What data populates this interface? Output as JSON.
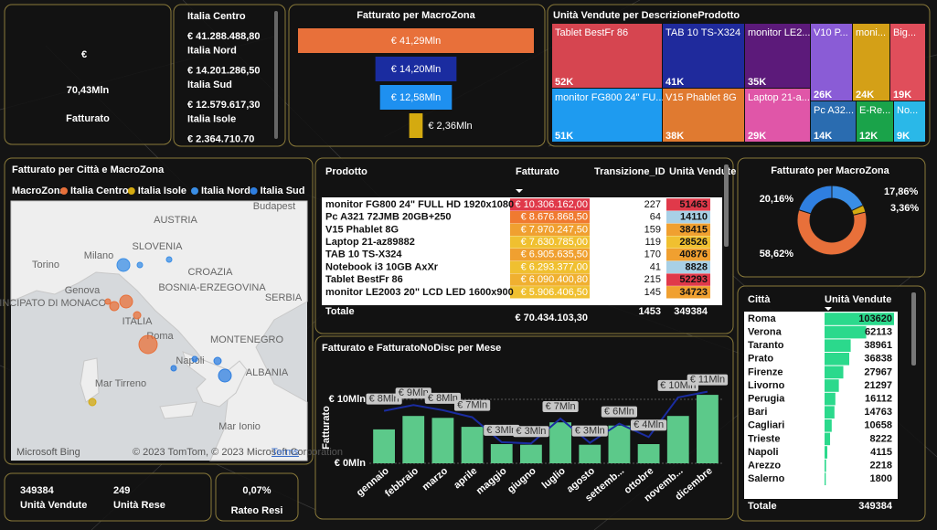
{
  "kpi": {
    "currency": "€",
    "value": "70,43Mln",
    "label": "Fatturato"
  },
  "zones": [
    {
      "name": "Italia Centro",
      "value": "€ 41.288.488,80"
    },
    {
      "name": "Italia Nord",
      "value": "€ 14.201.286,50"
    },
    {
      "name": "Italia Sud",
      "value": "€ 12.579.617,30"
    },
    {
      "name": "Italia Isole",
      "value": "€ 2.364.710.70"
    }
  ],
  "funnel": {
    "type": "bar",
    "title": "Fatturato per MacroZona",
    "values": [
      41.29,
      14.2,
      12.58,
      2.36
    ],
    "value_labels": [
      "€ 41,29Mln",
      "€ 14,20Mln",
      "€ 12,58Mln",
      "€ 2,36Mln"
    ],
    "colors": [
      "#e8703a",
      "#1a2ca0",
      "#1e90f0",
      "#d4aa10"
    ]
  },
  "treemap": {
    "type": "treemap",
    "title": "Unità Vendute per DescrizioneProdotto",
    "labels": [
      "Tablet BestFr 86",
      "TAB 10 TS-X324",
      "monitor LE2...",
      "V10 P...",
      "moni...",
      "Big...",
      "monitor FG800 24\" FU...",
      "V15 Phablet 8G",
      "Laptop 21-a...",
      "Pc A32...",
      "E-Re...",
      "No..."
    ],
    "values": [
      52,
      41,
      35,
      26,
      24,
      19,
      51,
      38,
      29,
      14,
      12,
      9
    ],
    "value_labels": [
      "52K",
      "41K",
      "35K",
      "26K",
      "24K",
      "19K",
      "51K",
      "38K",
      "29K",
      "14K",
      "12K",
      "9K"
    ],
    "colors": [
      "#d64550",
      "#1f2a9c",
      "#5c1a7a",
      "#8a5cd6",
      "#d4a017",
      "#e04e5b",
      "#1e9bf0",
      "#e07a30",
      "#e056a8",
      "#2a6cb0",
      "#1aa34a",
      "#2ab8e8"
    ]
  },
  "map": {
    "title": "Fatturato per Città e MacroZona",
    "legend_title": "MacroZona",
    "legend": [
      {
        "name": "Italia Centro",
        "color": "#e8703a"
      },
      {
        "name": "Italia Isole",
        "color": "#d4aa10"
      },
      {
        "name": "Italia Nord",
        "color": "#3a8ee6"
      },
      {
        "name": "Italia Sud",
        "color": "#2f7fe0"
      }
    ],
    "places": [
      "AUSTRIA",
      "Budapest",
      "SLOVENIA",
      "CROAZIA",
      "BOSNIA-ERZEGOVINA",
      "SERBIA",
      "MONTENEGRO",
      "ALBANIA",
      "Milano",
      "Torino",
      "Genova",
      "PRINCIPATO DI MONACO",
      "ITALIA",
      "Roma",
      "Napoli",
      "Mar Tirreno",
      "Mar Ionio"
    ],
    "attribution": "© 2023 TomTom, © 2023 Microsoft Corporation",
    "terms": "Terms",
    "brand": "Microsoft Bing"
  },
  "products": {
    "columns": [
      "Prodotto",
      "Fatturato",
      "Transizione_ID",
      "Unità Vendute"
    ],
    "rows": [
      [
        "monitor FG800 24\" FULL HD 1920x1080",
        "€ 10.306.162,00",
        227,
        51463
      ],
      [
        "Pc A321 72JMB 20GB+250",
        "€ 8.676.868,50",
        64,
        14110
      ],
      [
        "V15 Phablet 8G",
        "€ 7.970.247,50",
        159,
        38415
      ],
      [
        "Laptop 21-az89882",
        "€ 7.630.785,00",
        119,
        28526
      ],
      [
        "TAB 10 TS-X324",
        "€ 6.905.635,50",
        170,
        40876
      ],
      [
        "Notebook i3 10GB AxXr",
        "€ 6.293.377,00",
        41,
        8828
      ],
      [
        "Tablet BestFr 86",
        "€ 6.090.400,80",
        215,
        52293
      ],
      [
        "monitor LE2003 20\" LCD LED 1600x900",
        "€ 5.906.406,50",
        145,
        34723
      ]
    ],
    "total": [
      "Totale",
      "€ 70.434.103,30",
      1453,
      349384
    ],
    "fatturato_colors": [
      "#e0394a",
      "#f07a30",
      "#f0a030",
      "#f0c030",
      "#f0a030",
      "#f0c030",
      "#f0b030",
      "#f0c030"
    ],
    "units_colors": [
      "#e0394a",
      "#a8d0e6",
      "#f0a030",
      "#f0c030",
      "#f0a030",
      "#a8d0e6",
      "#e0394a",
      "#f0a030"
    ]
  },
  "donut": {
    "type": "pie",
    "title": "Fatturato per MacroZona",
    "values": [
      17.86,
      3.36,
      58.62,
      20.16
    ],
    "value_labels": [
      "17,86%",
      "3,36%",
      "58,62%",
      "20,16%"
    ],
    "colors": [
      "#3a8ee6",
      "#d4aa10",
      "#e8703a",
      "#2f7fe0"
    ]
  },
  "combo": {
    "type": "bar",
    "title": "Fatturato e FatturatoNoDisc per Mese",
    "ylabel": "Fatturato",
    "categories": [
      "gennaio",
      "febbraio",
      "marzo",
      "aprile",
      "maggio",
      "giugno",
      "luglio",
      "agosto",
      "settemb...",
      "ottobre",
      "novemb...",
      "dicembre"
    ],
    "ylim": [
      0,
      12
    ],
    "yticks": [
      {
        "value": 0,
        "label": "€ 0Mln"
      },
      {
        "value": 10,
        "label": "€ 10Mln"
      }
    ],
    "series": [
      {
        "type": "bar",
        "color": "#5cc98a",
        "values": [
          5.3,
          7.4,
          7.1,
          5.7,
          3.0,
          2.9,
          6.4,
          2.9,
          5.9,
          3.0,
          7.4,
          10.7
        ]
      },
      {
        "type": "line",
        "color": "#1a2ca0",
        "values": [
          8.2,
          9.1,
          8.3,
          7.2,
          3.3,
          3.1,
          7.0,
          3.2,
          6.2,
          4.1,
          10.3,
          11.2
        ],
        "value_labels": [
          "€ 8Mln",
          "€ 9Mln",
          "€ 8Mln",
          "€ 7Mln",
          "€ 3Mln",
          "€ 3Mln",
          "€ 7Mln",
          "€ 3Mln",
          "€ 6Mln",
          "€ 4Mln",
          "€ 10Mln",
          "€ 11Mln"
        ]
      }
    ]
  },
  "cities": {
    "columns": [
      "Città",
      "Unità Vendute"
    ],
    "rows": [
      [
        "Roma",
        103620
      ],
      [
        "Verona",
        62113
      ],
      [
        "Taranto",
        38961
      ],
      [
        "Prato",
        36838
      ],
      [
        "Firenze",
        27967
      ],
      [
        "Livorno",
        21297
      ],
      [
        "Perugia",
        16112
      ],
      [
        "Bari",
        14763
      ],
      [
        "Cagliari",
        10658
      ],
      [
        "Trieste",
        8222
      ],
      [
        "Napoli",
        4115
      ],
      [
        "Arezzo",
        2218
      ],
      [
        "Salerno",
        1800
      ]
    ],
    "total": [
      "Totale",
      349384
    ],
    "color": "#2bd98c"
  },
  "cards": [
    {
      "value": "349384",
      "label": "Unità Vendute"
    },
    {
      "value": "249",
      "label": "Unità Rese"
    },
    {
      "value": "0,07%",
      "label": "Rateo Resi"
    }
  ]
}
